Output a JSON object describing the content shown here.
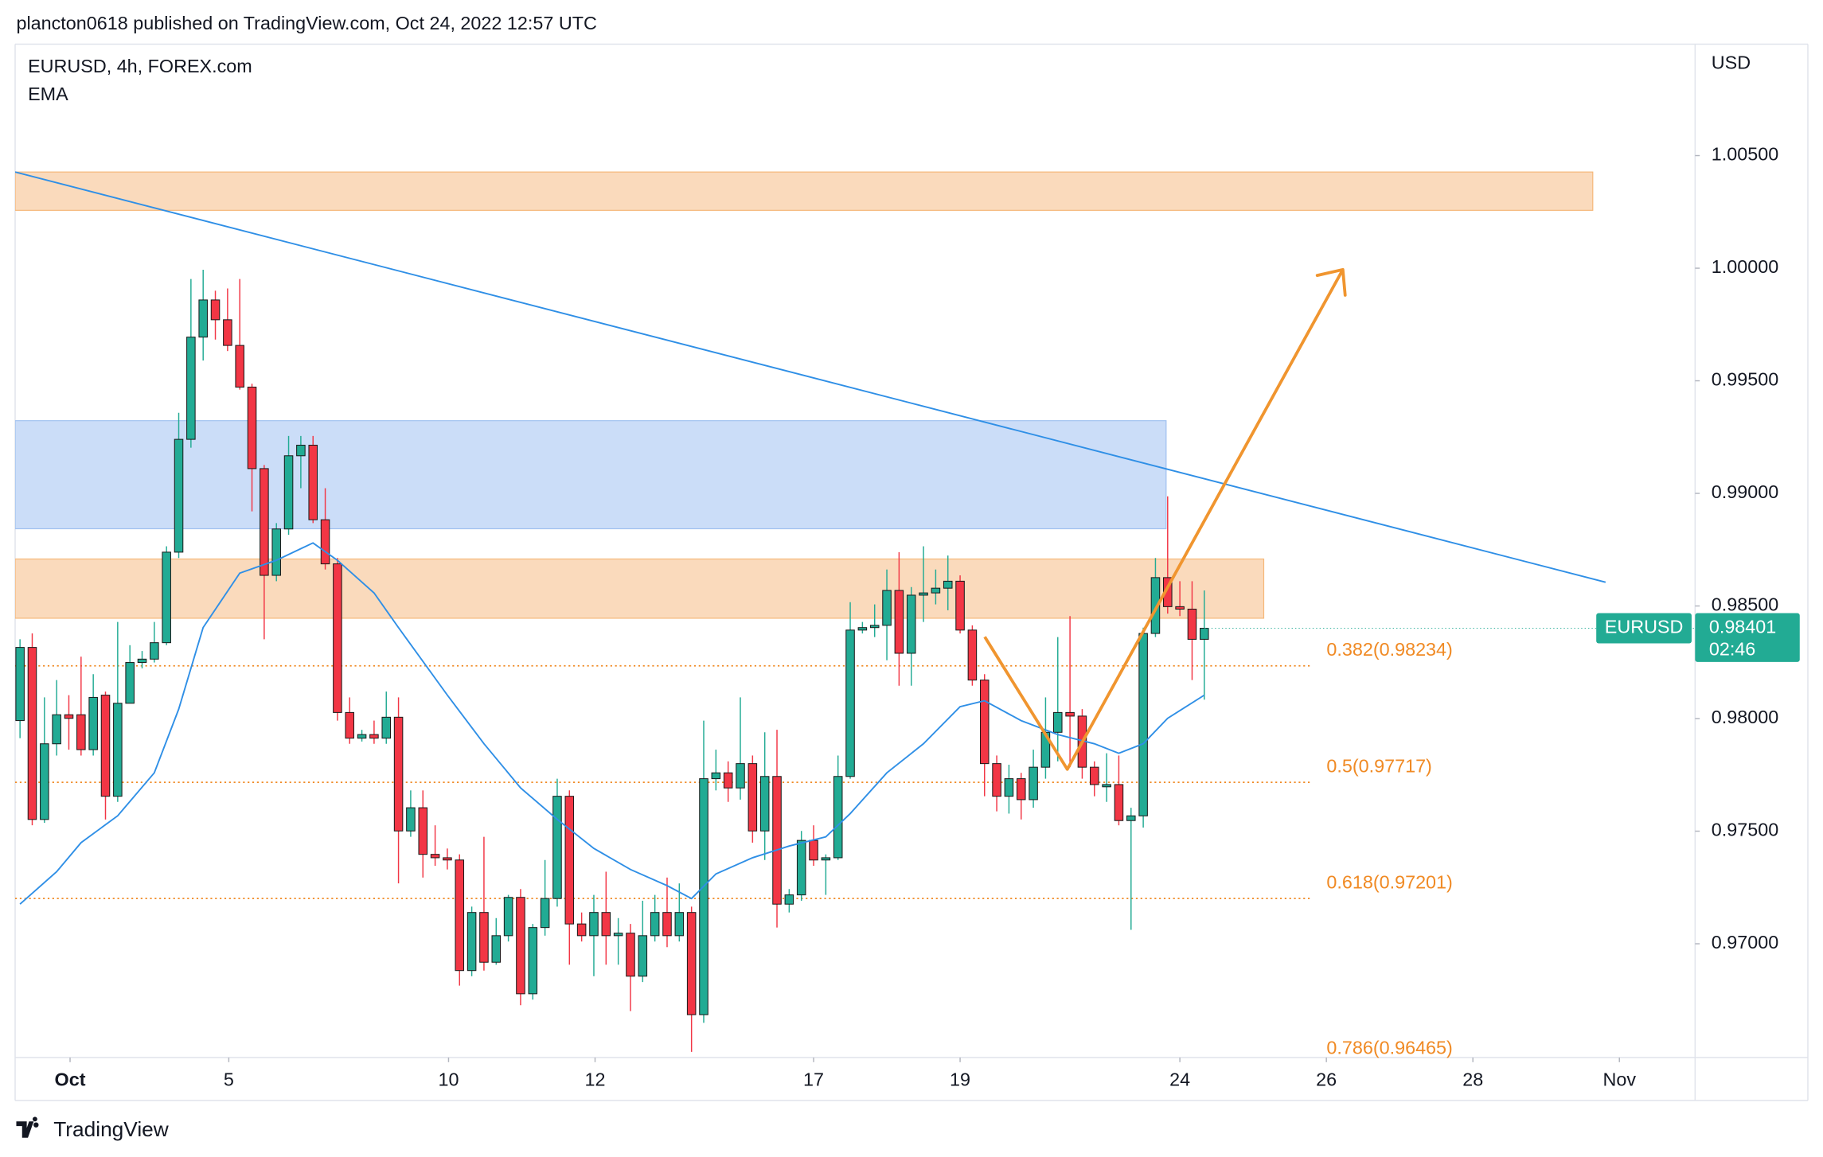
{
  "header": {
    "text": "plancton0618 published on TradingView.com, Oct 24, 2022 12:57 UTC"
  },
  "chart_data": {
    "type": "candlestick",
    "title": "EURUSD, 4h, FOREX.com",
    "currency": "USD",
    "up_color": "#22ab94",
    "down_color": "#f23645",
    "open": [
      0.97991,
      0.98316,
      0.97552,
      0.97888,
      0.98017,
      0.98017,
      0.97862,
      0.98104,
      0.97655,
      0.98068,
      0.98249,
      0.98264,
      0.98337,
      0.98739,
      0.9924,
      0.99694,
      0.99859,
      0.99771,
      0.99657,
      0.99472,
      0.9911,
      0.98636,
      0.98842,
      0.99167,
      0.99214,
      0.98883,
      0.98687,
      0.98027,
      0.97913,
      0.97929,
      0.97913,
      0.98006,
      0.97501,
      0.97604,
      0.97397,
      0.97382,
      0.97372,
      0.96881,
      0.97139,
      0.96918,
      0.97036,
      0.97206,
      0.96778,
      0.97072,
      0.97201,
      0.97655,
      0.97088,
      0.97036,
      0.97139,
      0.97036,
      0.97047,
      0.96856,
      0.97036,
      0.97139,
      0.97036,
      0.97139,
      0.96685,
      0.97733,
      0.97759,
      0.97692,
      0.978,
      0.97501,
      0.97743,
      0.97176,
      0.97217,
      0.97459,
      0.97372,
      0.97382,
      0.97743,
      0.98393,
      0.98404,
      0.98414,
      0.98569,
      0.9829,
      0.98548,
      0.98558,
      0.98579,
      0.9861,
      0.98393,
      0.98171,
      0.978,
      0.97655,
      0.97733,
      0.9764,
      0.97784,
      0.97939,
      0.98027,
      0.98011,
      0.97784,
      0.97697,
      0.97707,
      0.97547,
      0.97568,
      0.98378,
      0.98626,
      0.98497,
      0.98486,
      0.98352
    ],
    "high": [
      0.98352,
      0.98378,
      0.98094,
      0.98171,
      0.98104,
      0.98275,
      0.98197,
      0.9812,
      0.98429,
      0.98326,
      0.983,
      0.98429,
      0.98765,
      0.99358,
      0.99952,
      0.99993,
      0.999,
      0.9991,
      0.99952,
      0.99487,
      0.99126,
      0.98868,
      0.99255,
      0.99255,
      0.99255,
      0.99023,
      0.98713,
      0.98094,
      0.9795,
      0.97991,
      0.9812,
      0.98094,
      0.97681,
      0.97681,
      0.97526,
      0.97423,
      0.97397,
      0.97165,
      0.97475,
      0.97114,
      0.97217,
      0.97243,
      0.97088,
      0.97372,
      0.97733,
      0.97681,
      0.97139,
      0.97217,
      0.9732,
      0.97114,
      0.97088,
      0.97191,
      0.97217,
      0.97294,
      0.97268,
      0.97165,
      0.97991,
      0.97862,
      0.9781,
      0.98094,
      0.97836,
      0.97939,
      0.9795,
      0.97243,
      0.97501,
      0.97526,
      0.97397,
      0.97836,
      0.98517,
      0.98429,
      0.98507,
      0.98662,
      0.98739,
      0.98584,
      0.98765,
      0.98662,
      0.98724,
      0.98636,
      0.98414,
      0.98197,
      0.97836,
      0.97795,
      0.97759,
      0.97862,
      0.98094,
      0.98362,
      0.98455,
      0.98042,
      0.9781,
      0.97846,
      0.97836,
      0.97604,
      0.98404,
      0.98713,
      0.98987,
      0.9861,
      0.9861,
      0.98569
    ],
    "low": [
      0.97913,
      0.97526,
      0.97537,
      0.97836,
      0.97862,
      0.97836,
      0.97836,
      0.97552,
      0.9763,
      0.98068,
      0.98223,
      0.98249,
      0.98326,
      0.98713,
      0.99203,
      0.9959,
      0.99683,
      0.99632,
      0.99461,
      0.9892,
      0.98352,
      0.9861,
      0.98816,
      0.99023,
      0.98868,
      0.98662,
      0.97991,
      0.97888,
      0.97898,
      0.97888,
      0.97888,
      0.97268,
      0.97475,
      0.97294,
      0.97346,
      0.9733,
      0.96814,
      0.96856,
      0.96881,
      0.96907,
      0.9701,
      0.96727,
      0.96752,
      0.97036,
      0.97165,
      0.96907,
      0.9701,
      0.96856,
      0.96907,
      0.96907,
      0.96701,
      0.9683,
      0.9701,
      0.96985,
      0.9701,
      0.9652,
      0.96649,
      0.97681,
      0.9763,
      0.9764,
      0.97449,
      0.97372,
      0.97072,
      0.97139,
      0.97191,
      0.97346,
      0.97217,
      0.97372,
      0.97733,
      0.98378,
      0.98362,
      0.98259,
      0.98146,
      0.98146,
      0.98429,
      0.98507,
      0.98481,
      0.98378,
      0.98146,
      0.97655,
      0.97588,
      0.97578,
      0.97552,
      0.97604,
      0.97733,
      0.9781,
      0.97784,
      0.97733,
      0.97655,
      0.9763,
      0.97526,
      0.97062,
      0.97516,
      0.98362,
      0.98466,
      0.98455,
      0.98171,
      0.98084
    ],
    "close": [
      0.98316,
      0.97552,
      0.97888,
      0.98017,
      0.98001,
      0.97862,
      0.98094,
      0.97655,
      0.98068,
      0.98249,
      0.98264,
      0.98337,
      0.98739,
      0.9924,
      0.99694,
      0.99859,
      0.99771,
      0.99657,
      0.99472,
      0.9911,
      0.98636,
      0.98842,
      0.99167,
      0.99214,
      0.98883,
      0.98687,
      0.98027,
      0.97913,
      0.97929,
      0.97913,
      0.98006,
      0.97501,
      0.97604,
      0.97397,
      0.97382,
      0.97372,
      0.96881,
      0.97139,
      0.96918,
      0.97036,
      0.97206,
      0.96778,
      0.97072,
      0.97201,
      0.97655,
      0.97088,
      0.97036,
      0.97139,
      0.97036,
      0.97047,
      0.96856,
      0.97036,
      0.97139,
      0.97036,
      0.97139,
      0.96685,
      0.97733,
      0.97759,
      0.97692,
      0.978,
      0.97501,
      0.97743,
      0.97176,
      0.97217,
      0.97459,
      0.97372,
      0.97382,
      0.97743,
      0.98393,
      0.98404,
      0.98414,
      0.98569,
      0.9829,
      0.98548,
      0.98558,
      0.98579,
      0.9861,
      0.98393,
      0.98171,
      0.978,
      0.97655,
      0.97733,
      0.9764,
      0.97784,
      0.97939,
      0.98027,
      0.98011,
      0.97784,
      0.97707,
      0.97707,
      0.97547,
      0.97568,
      0.98378,
      0.98626,
      0.98497,
      0.98486,
      0.98352,
      0.98401
    ],
    "ema": {
      "name": "EMA",
      "color": "#2f8fe6",
      "x": [
        0,
        3,
        5,
        8,
        11,
        13,
        15,
        18,
        21,
        24,
        26,
        29,
        31,
        35,
        38,
        41,
        44,
        47,
        50,
        53,
        55,
        57,
        60,
        63,
        66,
        68,
        71,
        74,
        77,
        79,
        82,
        85,
        88,
        90,
        92,
        94,
        97
      ],
      "values": [
        0.97176,
        0.9732,
        0.97449,
        0.97568,
        0.97759,
        0.98042,
        0.98404,
        0.98646,
        0.98703,
        0.9878,
        0.98703,
        0.98558,
        0.98404,
        0.98104,
        0.97888,
        0.97692,
        0.97552,
        0.97423,
        0.9733,
        0.97258,
        0.97201,
        0.9731,
        0.97382,
        0.97434,
        0.97475,
        0.97578,
        0.97759,
        0.97888,
        0.98053,
        0.98079,
        0.97991,
        0.97929,
        0.97888,
        0.97846,
        0.97888,
        0.98001,
        0.98104
      ]
    },
    "fib_color": "#f08a24",
    "fib_levels": [
      {
        "value": 0.98234,
        "label": "0.382(0.98234)"
      },
      {
        "value": 0.97717,
        "label": "0.5(0.97717)"
      },
      {
        "value": 0.97201,
        "label": "0.618(0.97201)"
      },
      {
        "value": 0.96465,
        "label": "0.786(0.96465)"
      }
    ],
    "symbol": "EURUSD",
    "last_price": 0.98401,
    "countdown": "02:46",
    "xlim": [
      -0.4,
      137.2
    ],
    "xticks": [
      {
        "value": 4.1,
        "label": "Oct"
      },
      {
        "value": 17.1,
        "label": "5"
      },
      {
        "value": 35.1,
        "label": "10"
      },
      {
        "value": 47.1,
        "label": "12"
      },
      {
        "value": 65,
        "label": "17"
      },
      {
        "value": 77,
        "label": "19"
      },
      {
        "value": 95,
        "label": "24"
      },
      {
        "value": 107,
        "label": "26"
      },
      {
        "value": 119,
        "label": "28"
      },
      {
        "value": 131,
        "label": "Nov"
      }
    ],
    "ylim": [
      0.965,
      1.01
    ],
    "yticks": [
      {
        "value": 0.97,
        "label": "0.97000"
      },
      {
        "value": 0.975,
        "label": "0.97500"
      },
      {
        "value": 0.98,
        "label": "0.98000"
      },
      {
        "value": 0.985,
        "label": "0.98500"
      },
      {
        "value": 0.99,
        "label": "0.99000"
      },
      {
        "value": 0.995,
        "label": "0.99500"
      },
      {
        "value": 1.0,
        "label": "1.00000"
      },
      {
        "value": 1.005,
        "label": "1.00500"
      }
    ],
    "grid": false
  },
  "footer": {
    "brand": "TradingView"
  }
}
